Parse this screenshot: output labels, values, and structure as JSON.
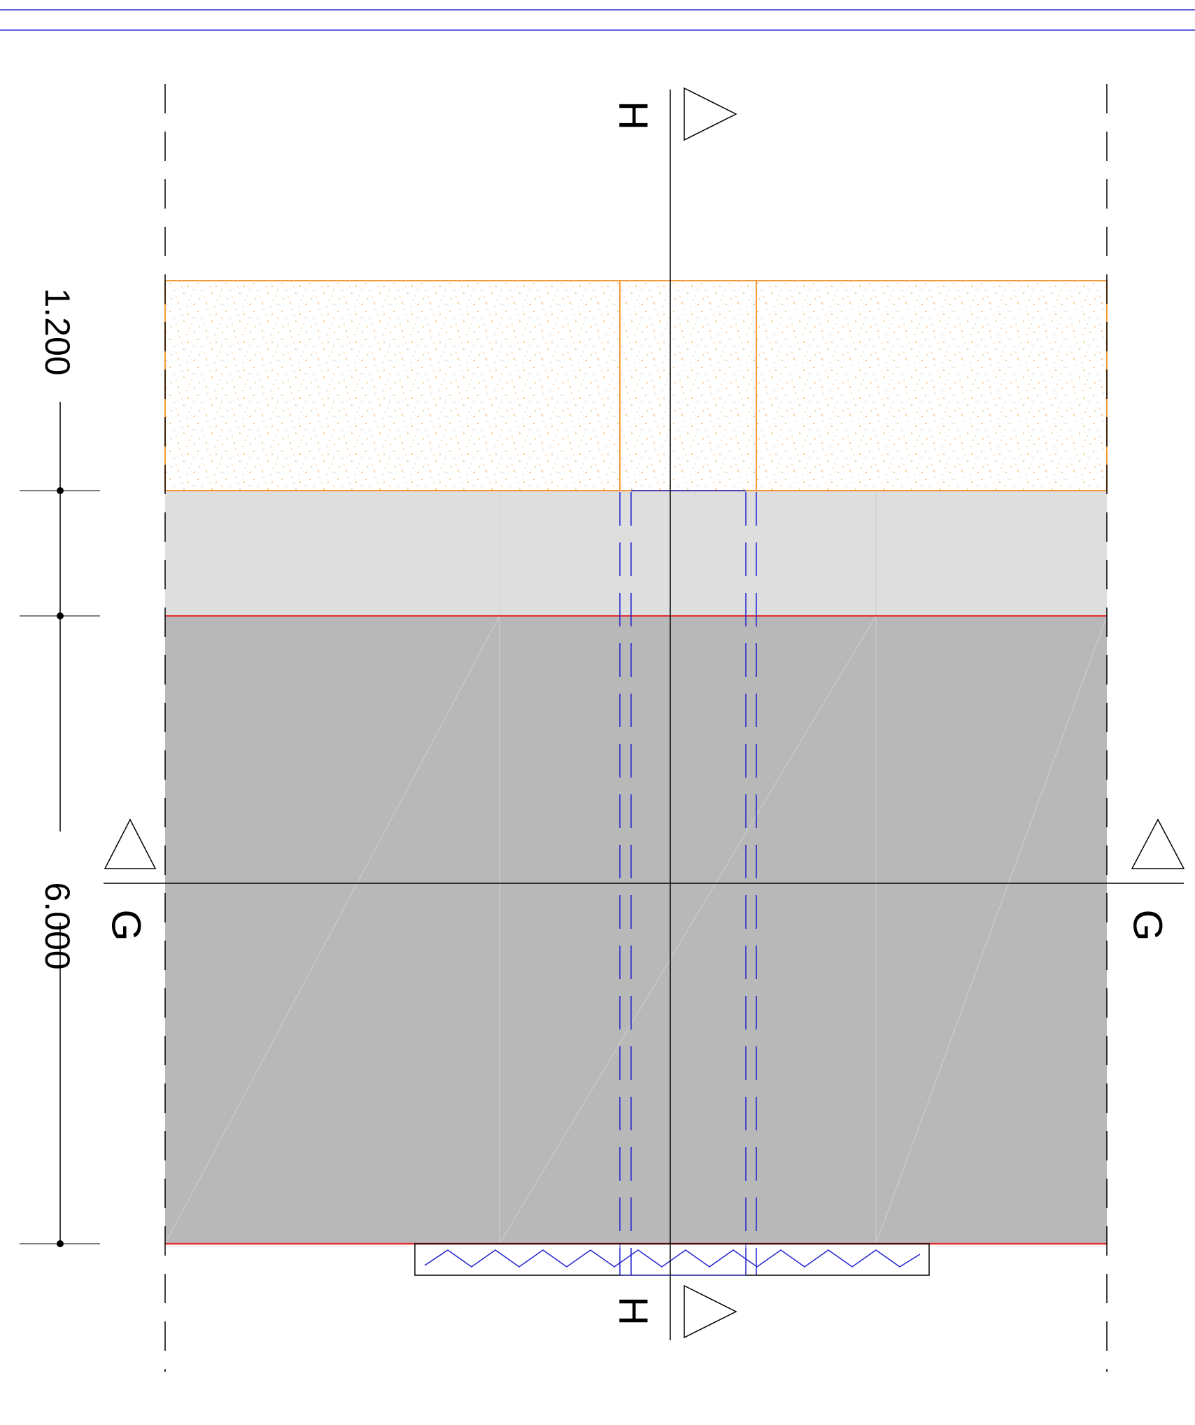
{
  "dimensions": {
    "top_value": "1.200",
    "main_value": "6.000"
  },
  "section_markers": {
    "vertical": "H",
    "horizontal": "G"
  },
  "colors": {
    "frame_line": "#2b2bd6",
    "insulation": "#f39a3c",
    "light_band": "#dedede",
    "slab": "#b8b8b8",
    "edge_red": "#e03030",
    "pipe_blue": "#2020d0",
    "axis": "#000000"
  }
}
